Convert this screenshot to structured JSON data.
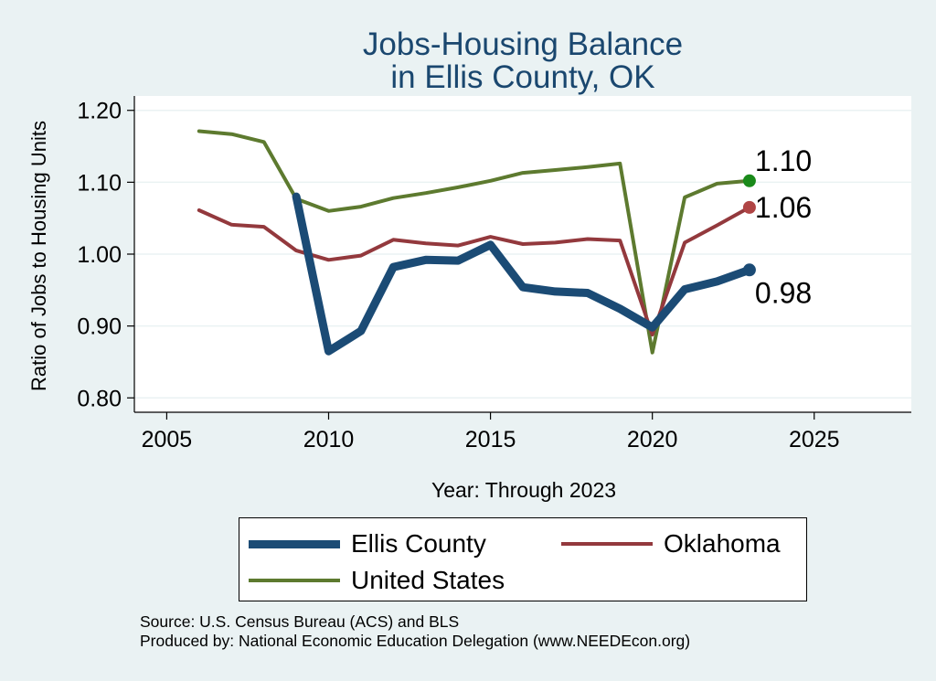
{
  "chart_data": {
    "type": "line",
    "title_line1": "Jobs-Housing Balance",
    "title_line2": "in Ellis County, OK",
    "xlabel": "Year: Through 2023",
    "ylabel": "Ratio of Jobs to Housing Units",
    "xlim": [
      2004,
      2028
    ],
    "ylim": [
      0.78,
      1.22
    ],
    "xticks": [
      2005,
      2010,
      2015,
      2020,
      2025
    ],
    "xtick_labels": [
      "2005",
      "2010",
      "2015",
      "2020",
      "2025"
    ],
    "yticks": [
      0.8,
      0.9,
      1.0,
      1.1,
      1.2
    ],
    "ytick_labels": [
      "0.80",
      "0.90",
      "1.00",
      "1.10",
      "1.20"
    ],
    "grid": true,
    "series": [
      {
        "name": "United States",
        "color": "#5d7a2f",
        "marker_color": "#1a8a1a",
        "x": [
          2006,
          2007,
          2008,
          2009,
          2010,
          2011,
          2012,
          2013,
          2014,
          2015,
          2016,
          2017,
          2018,
          2019,
          2020,
          2021,
          2022,
          2023
        ],
        "values": [
          1.171,
          1.167,
          1.156,
          1.077,
          1.06,
          1.066,
          1.078,
          1.085,
          1.093,
          1.102,
          1.113,
          1.117,
          1.121,
          1.126,
          0.863,
          1.079,
          1.098,
          1.102
        ],
        "end_label": "1.10"
      },
      {
        "name": "Oklahoma",
        "color": "#93393d",
        "marker_color": "#b04545",
        "x": [
          2006,
          2007,
          2008,
          2009,
          2010,
          2011,
          2012,
          2013,
          2014,
          2015,
          2016,
          2017,
          2018,
          2019,
          2020,
          2021,
          2022,
          2023
        ],
        "values": [
          1.061,
          1.041,
          1.038,
          1.005,
          0.992,
          0.998,
          1.02,
          1.015,
          1.012,
          1.024,
          1.014,
          1.016,
          1.021,
          1.019,
          0.888,
          1.016,
          1.04,
          1.065
        ],
        "end_label": "1.06"
      },
      {
        "name": "Ellis County",
        "color": "#1b4b75",
        "marker_color": "#1b4b75",
        "x": [
          2009,
          2010,
          2011,
          2012,
          2013,
          2014,
          2015,
          2016,
          2017,
          2018,
          2019,
          2020,
          2021,
          2022,
          2023
        ],
        "values": [
          1.08,
          0.865,
          0.893,
          0.982,
          0.992,
          0.991,
          1.013,
          0.954,
          0.948,
          0.946,
          0.924,
          0.898,
          0.951,
          0.962,
          0.978
        ],
        "end_label": "0.98"
      }
    ],
    "legend": [
      {
        "label": "Ellis County",
        "color": "#1b4b75",
        "width": "thick"
      },
      {
        "label": "Oklahoma",
        "color": "#93393d",
        "width": "thin"
      },
      {
        "label": "United States",
        "color": "#5d7a2f",
        "width": "thin"
      }
    ],
    "legend_position": "bottom",
    "source_note": "Source: U.S. Census Bureau (ACS) and BLS",
    "produced_note": "Produced by: National Economic Education Delegation (www.NEEDEcon.org)"
  }
}
